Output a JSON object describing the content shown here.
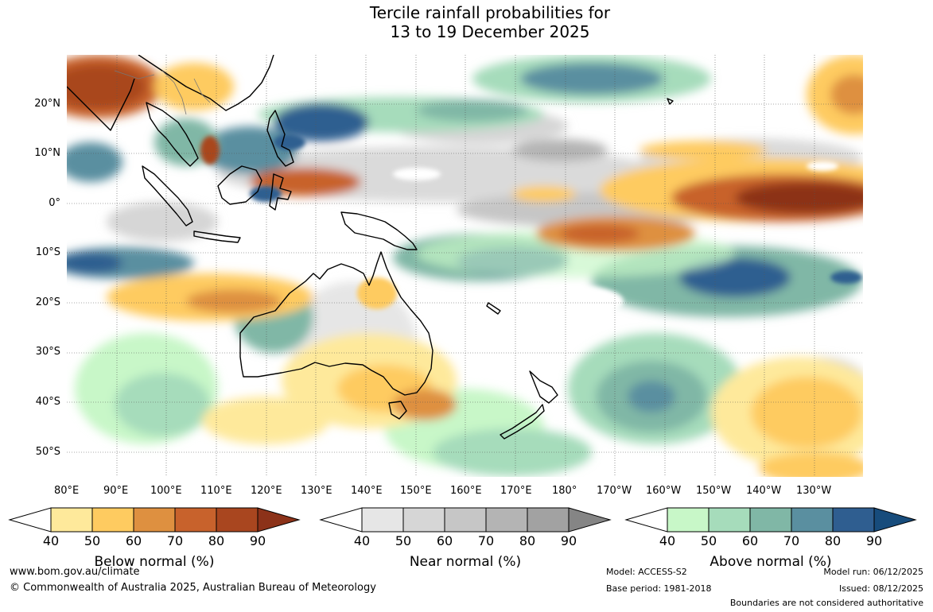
{
  "title": {
    "line1": "Tercile rainfall probabilities for",
    "line2": "13 to 19 December 2025"
  },
  "axes": {
    "lat_labels": [
      "20°N",
      "10°N",
      "0°",
      "10°S",
      "20°S",
      "30°S",
      "40°S",
      "50°S"
    ],
    "lon_labels": [
      "80°E",
      "90°E",
      "100°E",
      "110°E",
      "120°E",
      "130°E",
      "140°E",
      "150°E",
      "160°E",
      "170°E",
      "180°",
      "170°W",
      "160°W",
      "150°W",
      "140°W",
      "130°W"
    ]
  },
  "legend": {
    "ticks": [
      "40",
      "50",
      "60",
      "70",
      "80",
      "90"
    ],
    "below": {
      "label": "Below normal (%)",
      "colors": [
        "#fee99b",
        "#fecb60",
        "#de9040",
        "#c8622c",
        "#a9461f",
        "#8c3219"
      ]
    },
    "near": {
      "label": "Near normal (%)",
      "colors": [
        "#e6e6e6",
        "#d6d6d6",
        "#c6c6c6",
        "#b4b4b4",
        "#a2a2a2",
        "#858585"
      ]
    },
    "above": {
      "label": "Above normal (%)",
      "colors": [
        "#c8f7c8",
        "#a6dcbb",
        "#80b7a6",
        "#5a8fa0",
        "#2f5e90",
        "#174c7c"
      ]
    }
  },
  "footer": {
    "website": "www.bom.gov.au/climate",
    "copyright": "© Commonwealth of Australia 2025, Australian Bureau of Meteorology",
    "model": "Model: ACCESS-S2",
    "base_period": "Base period: 1981-2018",
    "model_run": "Model run: 06/12/2025",
    "issued": "Issued: 08/12/2025",
    "disclaimer": "Boundaries are not considered authoritative"
  }
}
